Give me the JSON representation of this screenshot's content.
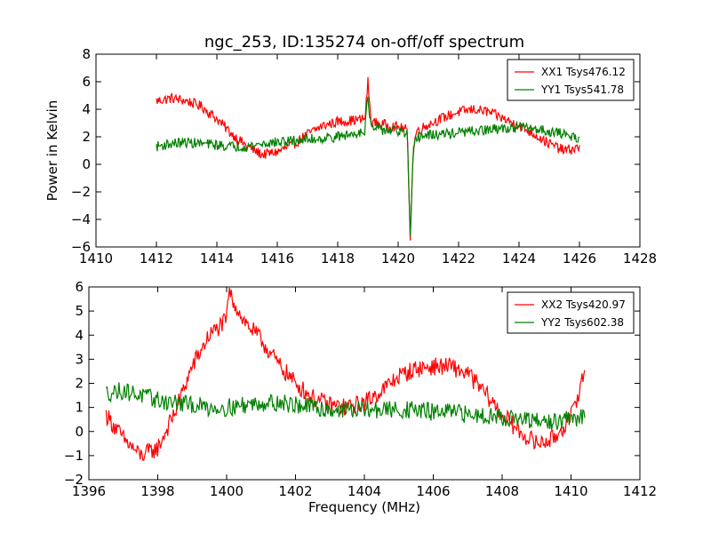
{
  "figure_title": "ngc_253, ID:135274 on-off/off spectrum",
  "chart_data": [
    {
      "type": "line",
      "title": "ngc_253, ID:135274 on-off/off spectrum",
      "xlabel": "",
      "ylabel": "Power in Kelvin",
      "xlim": [
        1410,
        1428
      ],
      "ylim": [
        -6,
        8
      ],
      "xticks": [
        "1410",
        "1412",
        "1414",
        "1416",
        "1418",
        "1420",
        "1422",
        "1424",
        "1426",
        "1428"
      ],
      "yticks": [
        "−6",
        "−4",
        "−2",
        "0",
        "2",
        "4",
        "6",
        "8"
      ],
      "grid": false,
      "legend_position": "top-right",
      "series": [
        {
          "name": "XX1 Tsys476.12",
          "color": "#ff0000",
          "x": [
            1412.0,
            1412.5,
            1413.0,
            1413.5,
            1414.0,
            1414.5,
            1415.0,
            1415.5,
            1416.0,
            1416.5,
            1417.0,
            1417.5,
            1418.0,
            1418.5,
            1418.9,
            1419.0,
            1419.1,
            1419.5,
            1420.0,
            1420.3,
            1420.4,
            1420.5,
            1420.6,
            1421.0,
            1421.5,
            1422.0,
            1422.5,
            1423.0,
            1423.5,
            1424.0,
            1424.5,
            1425.0,
            1425.5,
            1426.0
          ],
          "y": [
            4.6,
            4.8,
            4.6,
            4.2,
            3.3,
            2.2,
            1.3,
            0.7,
            0.9,
            1.4,
            2.2,
            2.8,
            3.1,
            3.2,
            3.3,
            6.0,
            3.1,
            2.9,
            2.7,
            2.5,
            -5.2,
            1.0,
            2.4,
            2.9,
            3.4,
            3.8,
            4.0,
            3.8,
            3.3,
            2.8,
            2.2,
            1.5,
            1.0,
            1.2
          ]
        },
        {
          "name": "YY1 Tsys541.78",
          "color": "#008000",
          "x": [
            1412.0,
            1412.5,
            1413.0,
            1413.5,
            1414.0,
            1414.5,
            1415.0,
            1415.5,
            1416.0,
            1416.5,
            1417.0,
            1417.5,
            1418.0,
            1418.5,
            1418.9,
            1419.0,
            1419.1,
            1419.5,
            1420.0,
            1420.3,
            1420.4,
            1420.5,
            1420.6,
            1421.0,
            1421.5,
            1422.0,
            1422.5,
            1423.0,
            1423.5,
            1424.0,
            1424.5,
            1425.0,
            1425.5,
            1426.0
          ],
          "y": [
            1.3,
            1.5,
            1.6,
            1.5,
            1.4,
            1.3,
            1.3,
            1.5,
            1.6,
            1.7,
            1.8,
            1.9,
            2.0,
            2.2,
            2.5,
            5.0,
            2.6,
            2.5,
            2.4,
            2.2,
            -5.4,
            0.8,
            2.0,
            2.1,
            2.2,
            2.3,
            2.4,
            2.5,
            2.6,
            2.7,
            2.6,
            2.4,
            2.2,
            1.9
          ]
        }
      ]
    },
    {
      "type": "line",
      "title": "",
      "xlabel": "Frequency (MHz)",
      "ylabel": "",
      "xlim": [
        1396,
        1412
      ],
      "ylim": [
        -2,
        6
      ],
      "xticks": [
        "1396",
        "1398",
        "1400",
        "1402",
        "1404",
        "1406",
        "1408",
        "1410",
        "1412"
      ],
      "yticks": [
        "−2",
        "−1",
        "0",
        "1",
        "2",
        "3",
        "4",
        "5",
        "6"
      ],
      "grid": false,
      "legend_position": "top-right",
      "series": [
        {
          "name": "XX2 Tsys420.97",
          "color": "#ff0000",
          "x": [
            1396.5,
            1397.0,
            1397.5,
            1398.0,
            1398.5,
            1399.0,
            1399.5,
            1400.0,
            1400.05,
            1400.5,
            1401.0,
            1401.5,
            1402.0,
            1402.5,
            1403.0,
            1403.5,
            1404.0,
            1404.5,
            1405.0,
            1405.5,
            1406.0,
            1406.5,
            1407.0,
            1407.5,
            1408.0,
            1408.5,
            1409.0,
            1409.5,
            1410.0,
            1410.4
          ],
          "y": [
            0.7,
            -0.3,
            -1.0,
            -0.7,
            0.8,
            2.7,
            4.0,
            4.6,
            5.8,
            4.6,
            3.8,
            2.8,
            2.0,
            1.4,
            1.1,
            1.0,
            1.2,
            1.7,
            2.3,
            2.6,
            2.7,
            2.7,
            2.4,
            1.6,
            0.7,
            0.0,
            -0.5,
            -0.3,
            0.6,
            2.5
          ]
        },
        {
          "name": "YY2 Tsys602.38",
          "color": "#008000",
          "x": [
            1396.5,
            1397.0,
            1397.5,
            1398.0,
            1398.5,
            1399.0,
            1399.5,
            1400.0,
            1400.05,
            1400.5,
            1401.0,
            1401.5,
            1402.0,
            1402.5,
            1403.0,
            1403.5,
            1404.0,
            1404.5,
            1405.0,
            1405.5,
            1406.0,
            1406.5,
            1407.0,
            1407.5,
            1408.0,
            1408.5,
            1409.0,
            1409.5,
            1410.0,
            1410.4
          ],
          "y": [
            1.6,
            1.7,
            1.5,
            1.3,
            1.2,
            1.1,
            1.0,
            1.0,
            1.0,
            1.1,
            1.2,
            1.2,
            1.1,
            1.0,
            0.9,
            0.9,
            0.9,
            0.9,
            0.9,
            0.9,
            0.8,
            0.8,
            0.7,
            0.7,
            0.6,
            0.5,
            0.4,
            0.4,
            0.5,
            0.6
          ]
        }
      ]
    }
  ]
}
